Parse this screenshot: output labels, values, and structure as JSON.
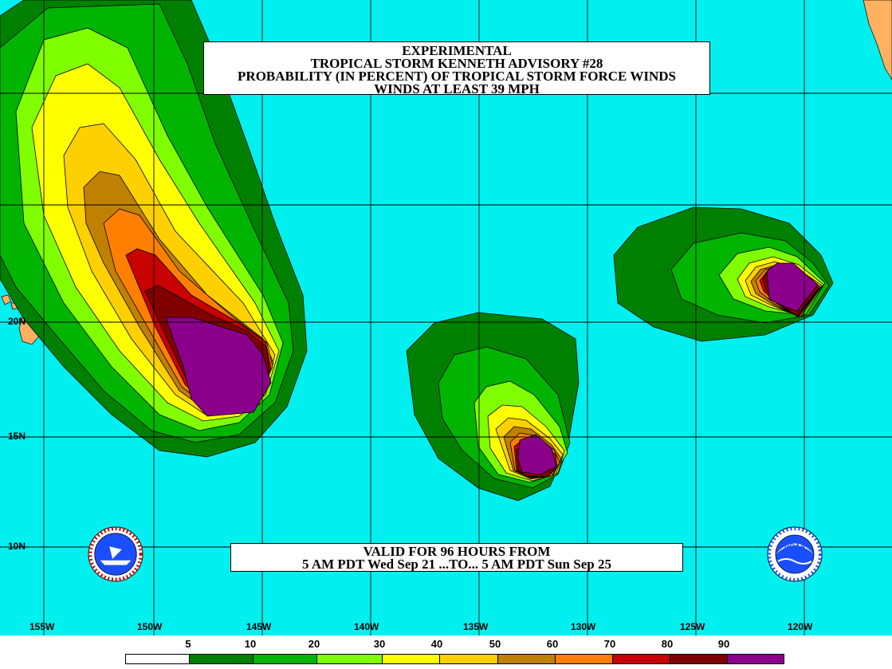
{
  "title": {
    "line1": "EXPERIMENTAL",
    "line2": "TROPICAL STORM KENNETH ADVISORY #28",
    "line3": "PROBABILITY (IN PERCENT) OF TROPICAL STORM FORCE WINDS",
    "line4": "WINDS AT LEAST 39 MPH"
  },
  "valid": {
    "line1": "VALID FOR 96 HOURS FROM",
    "line2": "5 AM PDT Wed Sep 21 ...TO... 5 AM PDT Sun Sep 25"
  },
  "lon_labels": [
    "155W",
    "150W",
    "145W",
    "140W",
    "135W",
    "130W",
    "125W",
    "120W"
  ],
  "lat_labels": [
    "20N",
    "15N",
    "10N"
  ],
  "legend": {
    "thresholds": [
      "5",
      "10",
      "20",
      "30",
      "40",
      "50",
      "60",
      "70",
      "80",
      "90"
    ],
    "colors": [
      "#ffffff",
      "#008000",
      "#00b400",
      "#80ff00",
      "#ffff00",
      "#ffd000",
      "#c08000",
      "#ff8000",
      "#c80000",
      "#800000",
      "#8b008b"
    ]
  },
  "colors": {
    "ocean": "#00f0f0",
    "land": "#ffb060",
    "grid": "#000000"
  },
  "logos": {
    "left": "nws-logo",
    "right": "noaa-logo"
  }
}
